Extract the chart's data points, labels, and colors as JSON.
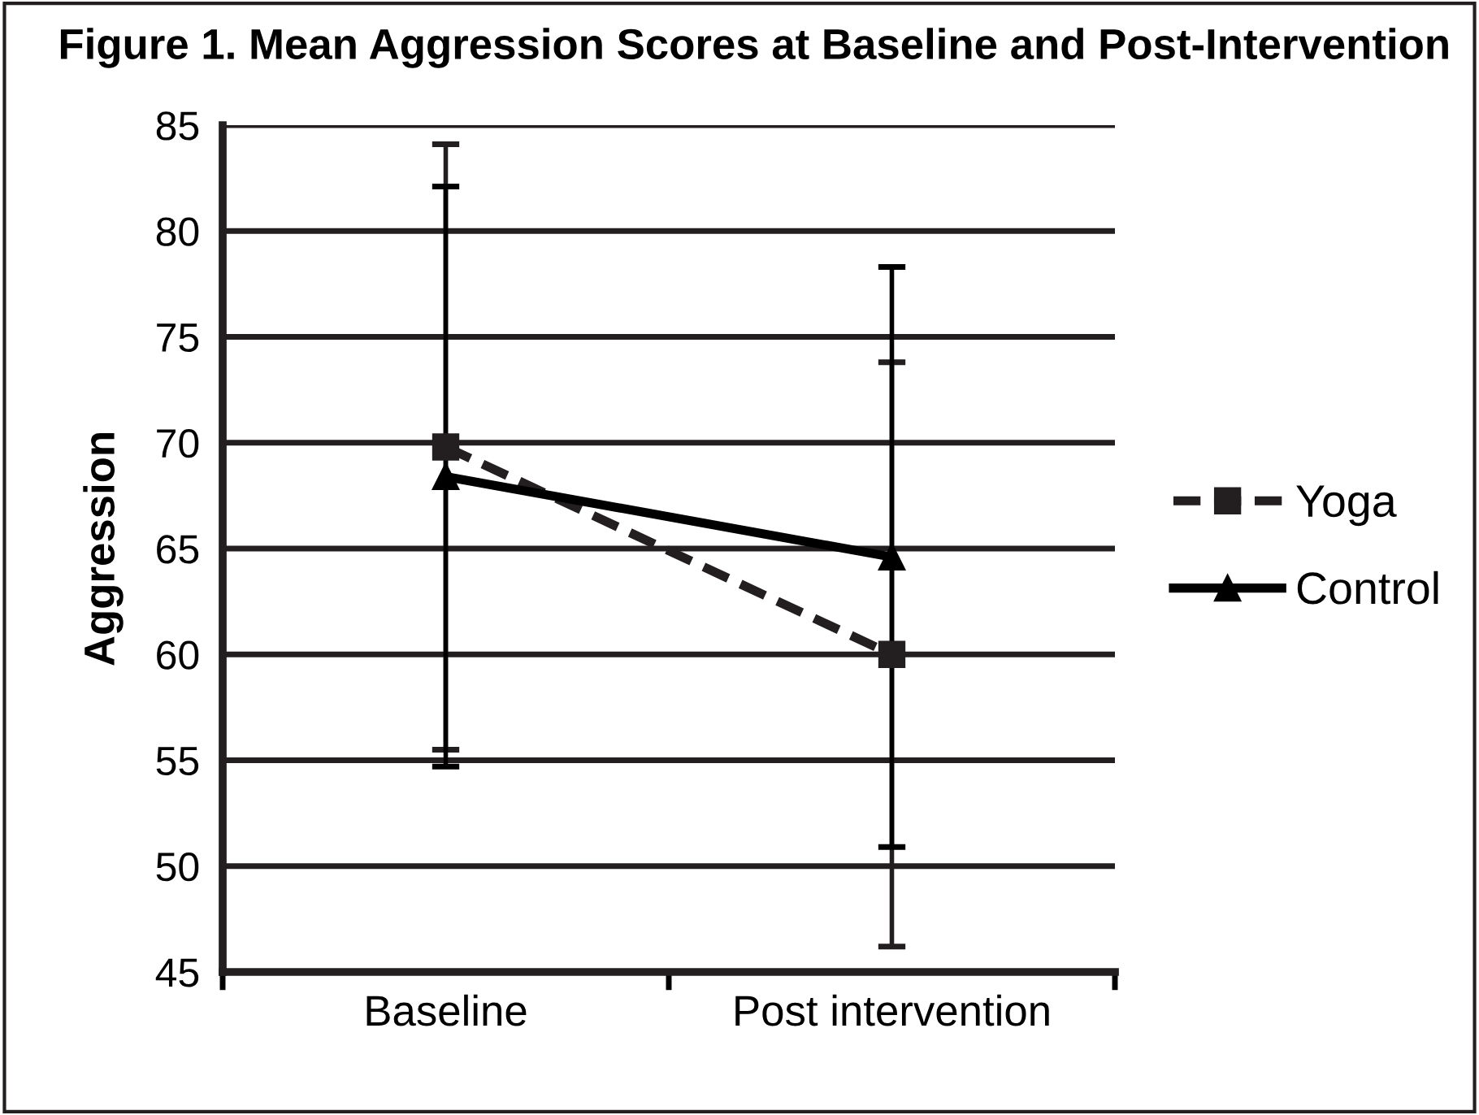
{
  "chart_data": {
    "type": "line",
    "title": "Figure 1. Mean Aggression Scores at Baseline and Post-Intervention",
    "ylabel": "Aggression",
    "categories": [
      "Baseline",
      "Post intervention"
    ],
    "series": [
      {
        "name": "Yoga",
        "color": "#231f20",
        "values": [
          69.8,
          60.0
        ],
        "errors": [
          14.3,
          13.8
        ],
        "marker": "square",
        "line_style": "dashed"
      },
      {
        "name": "Control",
        "color": "#000000",
        "values": [
          68.4,
          64.6
        ],
        "errors": [
          13.7,
          13.7
        ],
        "marker": "triangle",
        "line_style": "solid"
      }
    ],
    "ylim": [
      45,
      85
    ],
    "yticks": [
      45,
      50,
      55,
      60,
      65,
      70,
      75,
      80,
      85
    ],
    "grid": "y",
    "legend": "right"
  }
}
